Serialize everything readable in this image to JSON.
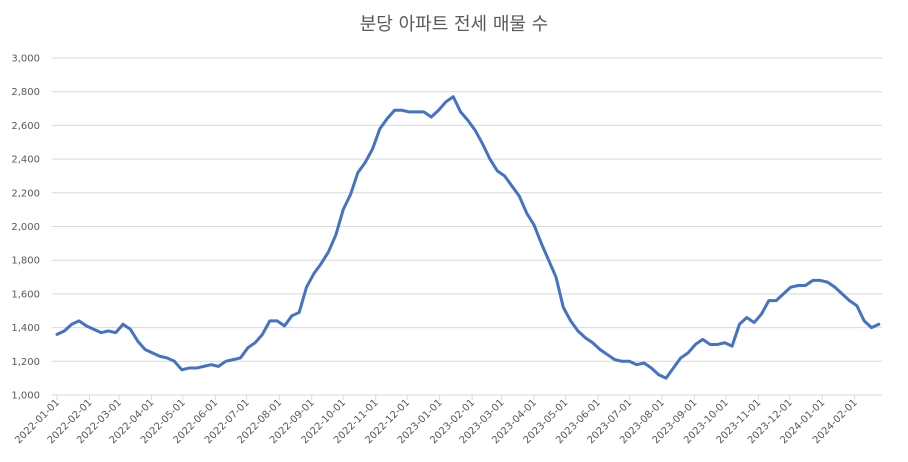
{
  "chart_data": {
    "type": "line",
    "title": "분당 아파트 전세 매물 수",
    "x": [
      "2022-01-01",
      "2022-01-08",
      "2022-01-15",
      "2022-01-22",
      "2022-01-29",
      "2022-02-05",
      "2022-02-12",
      "2022-02-19",
      "2022-02-26",
      "2022-03-05",
      "2022-03-12",
      "2022-03-19",
      "2022-03-26",
      "2022-04-02",
      "2022-04-09",
      "2022-04-16",
      "2022-04-23",
      "2022-04-30",
      "2022-05-07",
      "2022-05-14",
      "2022-05-21",
      "2022-05-28",
      "2022-06-04",
      "2022-06-11",
      "2022-06-18",
      "2022-06-25",
      "2022-07-02",
      "2022-07-09",
      "2022-07-16",
      "2022-07-23",
      "2022-07-30",
      "2022-08-06",
      "2022-08-13",
      "2022-08-20",
      "2022-08-27",
      "2022-09-03",
      "2022-09-10",
      "2022-09-17",
      "2022-09-24",
      "2022-10-01",
      "2022-10-08",
      "2022-10-15",
      "2022-10-22",
      "2022-10-29",
      "2022-11-05",
      "2022-11-12",
      "2022-11-19",
      "2022-11-26",
      "2022-12-03",
      "2022-12-10",
      "2022-12-17",
      "2022-12-24",
      "2022-12-31",
      "2023-01-07",
      "2023-01-14",
      "2023-01-21",
      "2023-01-28",
      "2023-02-04",
      "2023-02-11",
      "2023-02-18",
      "2023-02-25",
      "2023-03-04",
      "2023-03-11",
      "2023-03-18",
      "2023-03-25",
      "2023-04-01",
      "2023-04-08",
      "2023-04-15",
      "2023-04-22",
      "2023-04-29",
      "2023-05-06",
      "2023-05-13",
      "2023-05-20",
      "2023-05-27",
      "2023-06-03",
      "2023-06-10",
      "2023-06-17",
      "2023-06-24",
      "2023-07-01",
      "2023-07-08",
      "2023-07-15",
      "2023-07-22",
      "2023-07-29",
      "2023-08-05",
      "2023-08-12",
      "2023-08-19",
      "2023-08-26",
      "2023-09-02",
      "2023-09-09",
      "2023-09-16",
      "2023-09-23",
      "2023-09-30",
      "2023-10-07",
      "2023-10-14",
      "2023-10-21",
      "2023-10-28",
      "2023-11-04",
      "2023-11-11",
      "2023-11-18",
      "2023-11-25",
      "2023-12-02",
      "2023-12-09",
      "2023-12-16",
      "2023-12-23",
      "2023-12-30",
      "2024-01-06",
      "2024-01-13",
      "2024-01-20",
      "2024-01-27",
      "2024-02-03",
      "2024-02-10",
      "2024-02-17",
      "2024-02-24"
    ],
    "series": [
      {
        "color": "#4472c4",
        "values": [
          1360,
          1380,
          1420,
          1440,
          1410,
          1390,
          1370,
          1380,
          1370,
          1420,
          1390,
          1320,
          1270,
          1250,
          1230,
          1220,
          1200,
          1150,
          1160,
          1160,
          1170,
          1180,
          1170,
          1200,
          1210,
          1220,
          1280,
          1310,
          1360,
          1440,
          1440,
          1410,
          1470,
          1490,
          1640,
          1720,
          1780,
          1850,
          1950,
          2100,
          2190,
          2320,
          2380,
          2460,
          2580,
          2640,
          2690,
          2690,
          2680,
          2680,
          2680,
          2650,
          2690,
          2740,
          2770,
          2680,
          2630,
          2570,
          2490,
          2400,
          2330,
          2300,
          2240,
          2180,
          2080,
          2010,
          1900,
          1800,
          1700,
          1520,
          1440,
          1380,
          1340,
          1310,
          1270,
          1240,
          1210,
          1200,
          1200,
          1180,
          1190,
          1160,
          1120,
          1100,
          1160,
          1220,
          1250,
          1300,
          1330,
          1300,
          1300,
          1310,
          1290,
          1420,
          1460,
          1430,
          1480,
          1560,
          1560,
          1600,
          1640,
          1650,
          1650,
          1680,
          1680,
          1670,
          1640,
          1600,
          1560,
          1530,
          1440,
          1400,
          1420
        ]
      }
    ],
    "xlim": [
      "2022-01-01",
      "2024-02-27"
    ],
    "xticks": [
      "2022-01-01",
      "2022-02-01",
      "2022-03-01",
      "2022-04-01",
      "2022-05-01",
      "2022-06-01",
      "2022-07-01",
      "2022-08-01",
      "2022-09-01",
      "2022-10-01",
      "2022-11-01",
      "2022-12-01",
      "2023-01-01",
      "2023-02-01",
      "2023-03-01",
      "2023-04-01",
      "2023-05-01",
      "2023-06-01",
      "2023-07-01",
      "2023-08-01",
      "2023-09-01",
      "2023-10-01",
      "2023-11-01",
      "2023-12-01",
      "2024-01-01",
      "2024-02-01"
    ],
    "ylim": [
      1000,
      3000
    ],
    "yticks": [
      {
        "value": 1000,
        "label": "1,000"
      },
      {
        "value": 1200,
        "label": "1,200"
      },
      {
        "value": 1400,
        "label": "1,400"
      },
      {
        "value": 1600,
        "label": "1,600"
      },
      {
        "value": 1800,
        "label": "1,800"
      },
      {
        "value": 2000,
        "label": "2,000"
      },
      {
        "value": 2200,
        "label": "2,200"
      },
      {
        "value": 2400,
        "label": "2,400"
      },
      {
        "value": 2600,
        "label": "2,600"
      },
      {
        "value": 2800,
        "label": "2,800"
      },
      {
        "value": 3000,
        "label": "3,000"
      }
    ],
    "grid": true
  }
}
